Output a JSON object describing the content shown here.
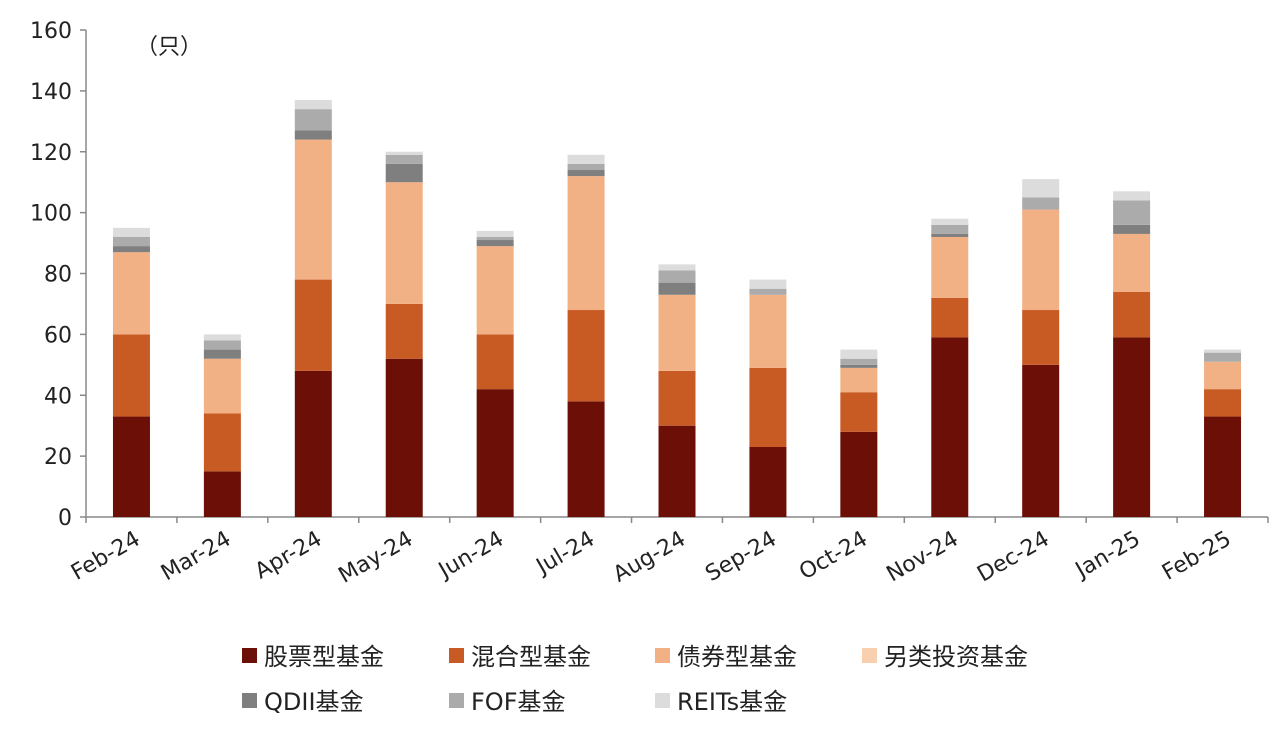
{
  "chart_data": {
    "type": "bar",
    "stacked": true,
    "unit_label": "（只）",
    "categories": [
      "Feb-24",
      "Mar-24",
      "Apr-24",
      "May-24",
      "Jun-24",
      "Jul-24",
      "Aug-24",
      "Sep-24",
      "Oct-24",
      "Nov-24",
      "Dec-24",
      "Jan-25",
      "Feb-25"
    ],
    "ylim": [
      0,
      160
    ],
    "yticks": [
      0,
      20,
      40,
      60,
      80,
      100,
      120,
      140,
      160
    ],
    "grid": false,
    "legend_position": "bottom",
    "series": [
      {
        "name": "股票型基金",
        "color": "#6b0f07",
        "values": [
          33,
          15,
          48,
          52,
          42,
          38,
          30,
          23,
          28,
          59,
          50,
          59,
          33
        ]
      },
      {
        "name": "混合型基金",
        "color": "#c85a24",
        "values": [
          27,
          19,
          30,
          18,
          18,
          30,
          18,
          26,
          13,
          13,
          18,
          15,
          9
        ]
      },
      {
        "name": "债券型基金",
        "color": "#f2b085",
        "values": [
          27,
          18,
          46,
          40,
          29,
          44,
          25,
          24,
          8,
          20,
          33,
          19,
          9
        ]
      },
      {
        "name": "另类投资基金",
        "color": "#f8d0b0",
        "values": [
          0,
          0,
          0,
          0,
          0,
          0,
          0,
          0,
          0,
          0,
          0,
          0,
          0
        ]
      },
      {
        "name": "QDII基金",
        "color": "#7f7f7f",
        "values": [
          2,
          3,
          3,
          6,
          2,
          2,
          4,
          0,
          1,
          1,
          0,
          3,
          0
        ]
      },
      {
        "name": "FOF基金",
        "color": "#ababab",
        "values": [
          3,
          3,
          7,
          3,
          1,
          2,
          4,
          2,
          2,
          3,
          4,
          8,
          3
        ]
      },
      {
        "name": "REITs基金",
        "color": "#dcdcdc",
        "values": [
          3,
          2,
          3,
          1,
          2,
          3,
          2,
          3,
          3,
          2,
          6,
          3,
          1
        ]
      }
    ]
  }
}
